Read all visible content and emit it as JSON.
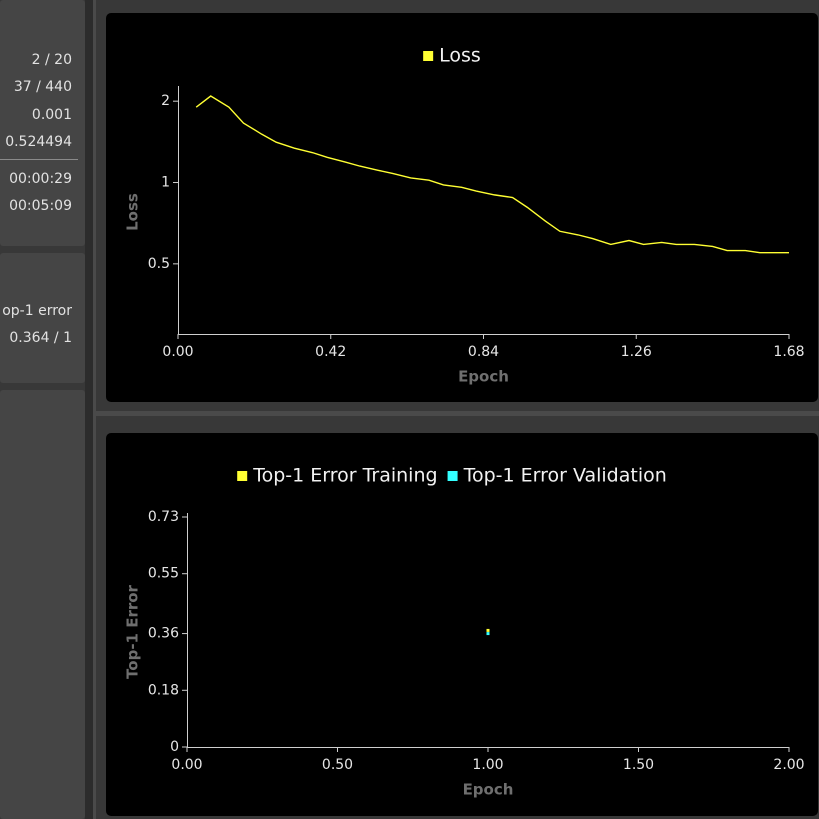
{
  "sidebar": {
    "stats": [
      "2 / 20",
      "37 / 440",
      "0.001",
      "0.524494"
    ],
    "times": [
      "00:00:29",
      "00:05:09"
    ],
    "metric": {
      "label": "op-1 error",
      "value": "0.364 / 1"
    }
  },
  "chart_data": [
    {
      "type": "line",
      "ylabel": "Loss",
      "xlabel": "Epoch",
      "log_y": true,
      "x": [
        0.05,
        0.09,
        0.14,
        0.18,
        0.23,
        0.27,
        0.32,
        0.37,
        0.41,
        0.46,
        0.5,
        0.55,
        0.59,
        0.64,
        0.69,
        0.73,
        0.78,
        0.82,
        0.87,
        0.92,
        0.96,
        1.01,
        1.05,
        1.1,
        1.14,
        1.19,
        1.24,
        1.28,
        1.33,
        1.37,
        1.42,
        1.47,
        1.51,
        1.56,
        1.6,
        1.65,
        1.68
      ],
      "series": [
        {
          "name": "Loss",
          "color": "#ffff33",
          "values": [
            1.9,
            2.09,
            1.9,
            1.66,
            1.51,
            1.41,
            1.34,
            1.29,
            1.24,
            1.19,
            1.15,
            1.11,
            1.08,
            1.04,
            1.02,
            0.98,
            0.96,
            0.93,
            0.9,
            0.88,
            0.81,
            0.72,
            0.66,
            0.64,
            0.62,
            0.59,
            0.61,
            0.59,
            0.6,
            0.59,
            0.59,
            0.58,
            0.56,
            0.56,
            0.55,
            0.55,
            0.55
          ]
        }
      ],
      "xlim": [
        0,
        1.68
      ],
      "xticks": [
        {
          "value": 0,
          "label": "0.00"
        },
        0.42,
        0.84,
        1.26,
        1.68
      ],
      "ylim": [
        0.275,
        2.2
      ],
      "yticks": [
        2,
        1,
        0.5
      ],
      "grid": false
    },
    {
      "type": "scatter",
      "ylabel": "Top-1 Error",
      "xlabel": "Epoch",
      "x": [
        1.0
      ],
      "series": [
        {
          "name": "Top-1 Error Training",
          "color": "#ffff33",
          "values": [
            0.37
          ]
        },
        {
          "name": "Top-1 Error Validation",
          "color": "#33ffff",
          "values": [
            0.36
          ]
        }
      ],
      "xlim": [
        0,
        2
      ],
      "xticks": [
        {
          "value": 0,
          "label": "0.00"
        },
        {
          "value": 0.5,
          "label": "0.50"
        },
        {
          "value": 1,
          "label": "1.00"
        },
        {
          "value": 1.5,
          "label": "1.50"
        },
        {
          "value": 2,
          "label": "2.00"
        }
      ],
      "ylim": [
        0,
        0.73
      ],
      "yticks": [
        0,
        0.18,
        0.36,
        0.55,
        0.73
      ],
      "grid": false
    }
  ]
}
